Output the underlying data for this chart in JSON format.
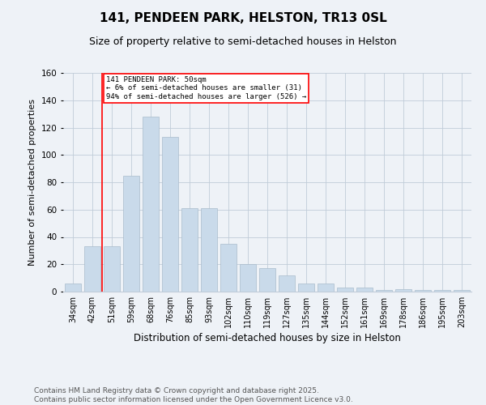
{
  "title": "141, PENDEEN PARK, HELSTON, TR13 0SL",
  "subtitle": "Size of property relative to semi-detached houses in Helston",
  "xlabel": "Distribution of semi-detached houses by size in Helston",
  "ylabel": "Number of semi-detached properties",
  "categories": [
    "34sqm",
    "42sqm",
    "51sqm",
    "59sqm",
    "68sqm",
    "76sqm",
    "85sqm",
    "93sqm",
    "102sqm",
    "110sqm",
    "119sqm",
    "127sqm",
    "135sqm",
    "144sqm",
    "152sqm",
    "161sqm",
    "169sqm",
    "178sqm",
    "186sqm",
    "195sqm",
    "203sqm"
  ],
  "values": [
    6,
    33,
    33,
    85,
    128,
    113,
    61,
    61,
    35,
    20,
    17,
    12,
    6,
    6,
    3,
    3,
    1,
    2,
    1,
    1,
    1
  ],
  "bar_color": "#c9daea",
  "bar_edge_color": "#aabccc",
  "vline_x_index": 2,
  "vline_color": "red",
  "annotation_title": "141 PENDEEN PARK: 50sqm",
  "annotation_line1": "← 6% of semi-detached houses are smaller (31)",
  "annotation_line2": "94% of semi-detached houses are larger (526) →",
  "annotation_box_color": "white",
  "annotation_box_edge": "red",
  "ylim": [
    0,
    160
  ],
  "yticks": [
    0,
    20,
    40,
    60,
    80,
    100,
    120,
    140,
    160
  ],
  "footer_line1": "Contains HM Land Registry data © Crown copyright and database right 2025.",
  "footer_line2": "Contains public sector information licensed under the Open Government Licence v3.0.",
  "bg_color": "#eef2f7",
  "plot_bg_color": "#eef2f7",
  "grid_color": "#c0ccd8",
  "title_fontsize": 11,
  "subtitle_fontsize": 9,
  "axis_label_fontsize": 8,
  "tick_fontsize": 7,
  "footer_fontsize": 6.5
}
